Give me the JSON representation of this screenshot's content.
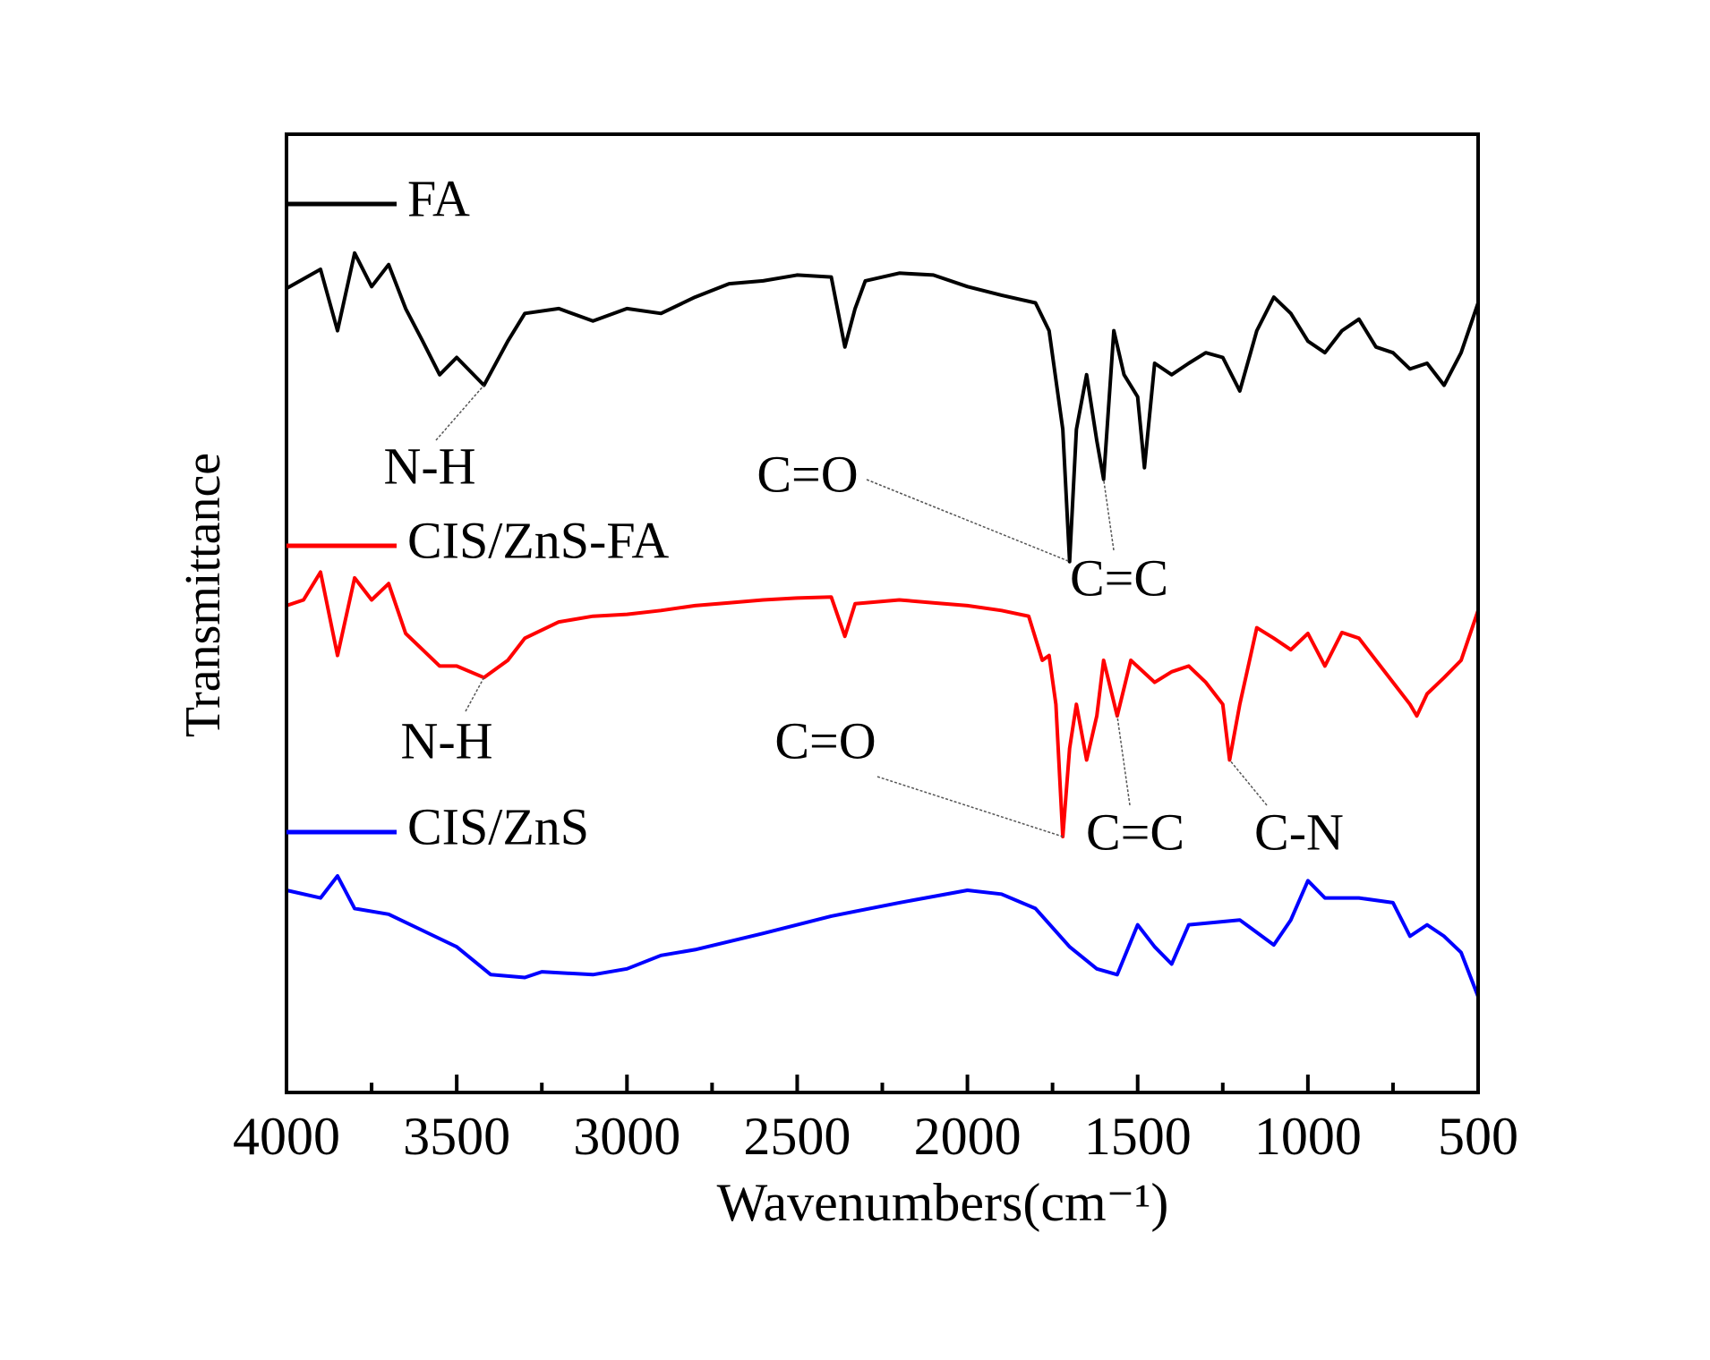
{
  "chart_data": {
    "type": "line",
    "xlabel": "Wavenumbers(cm⁻¹)",
    "ylabel": "Transmittance",
    "xlim": [
      4000,
      500
    ],
    "ylim": [
      0,
      100
    ],
    "xticks": [
      4000,
      3500,
      3000,
      2500,
      2000,
      1500,
      1000,
      500
    ],
    "xminorticks": [
      3750,
      3250,
      2750,
      2250,
      1750,
      1250,
      750
    ],
    "series": [
      {
        "name": "FA",
        "color": "#000000",
        "x": [
          4000,
          3900,
          3850,
          3800,
          3750,
          3700,
          3650,
          3600,
          3550,
          3500,
          3420,
          3350,
          3300,
          3200,
          3100,
          3000,
          2900,
          2800,
          2700,
          2600,
          2500,
          2400,
          2360,
          2330,
          2300,
          2200,
          2100,
          2000,
          1900,
          1800,
          1760,
          1720,
          1700,
          1680,
          1650,
          1620,
          1600,
          1570,
          1540,
          1500,
          1480,
          1450,
          1400,
          1350,
          1300,
          1250,
          1200,
          1150,
          1100,
          1050,
          1000,
          950,
          900,
          850,
          800,
          750,
          700,
          650,
          600,
          550,
          500
        ],
        "values": [
          83.9,
          85.9,
          79.5,
          87.6,
          84.1,
          86.4,
          81.8,
          78.4,
          74.9,
          76.7,
          73.8,
          78.4,
          81.3,
          81.8,
          80.5,
          81.8,
          81.3,
          83.0,
          84.4,
          84.7,
          85.3,
          85.1,
          77.8,
          81.8,
          84.7,
          85.5,
          85.3,
          84.1,
          83.2,
          82.4,
          79.5,
          69.2,
          55.4,
          69.2,
          74.9,
          68.0,
          64.0,
          79.5,
          74.9,
          72.6,
          65.2,
          76.1,
          74.9,
          76.1,
          77.2,
          76.7,
          73.2,
          79.5,
          83.0,
          81.3,
          78.4,
          77.2,
          79.5,
          80.7,
          77.8,
          77.2,
          75.5,
          76.1,
          73.8,
          77.2,
          82.4
        ]
      },
      {
        "name": "CIS/ZnS-FA",
        "color": "#ff0000",
        "x": [
          4000,
          3950,
          3900,
          3850,
          3800,
          3750,
          3700,
          3650,
          3600,
          3550,
          3500,
          3420,
          3350,
          3300,
          3200,
          3100,
          3000,
          2900,
          2800,
          2700,
          2600,
          2500,
          2400,
          2360,
          2330,
          2200,
          2100,
          2000,
          1900,
          1820,
          1780,
          1760,
          1740,
          1720,
          1700,
          1680,
          1650,
          1620,
          1600,
          1560,
          1520,
          1450,
          1400,
          1350,
          1300,
          1250,
          1230,
          1200,
          1150,
          1100,
          1050,
          1000,
          950,
          900,
          850,
          800,
          750,
          700,
          680,
          650,
          600,
          550,
          500
        ],
        "values": [
          50.8,
          51.4,
          54.3,
          45.6,
          53.7,
          51.4,
          53.1,
          47.9,
          46.2,
          44.5,
          44.5,
          43.3,
          45.1,
          47.4,
          49.1,
          49.7,
          49.9,
          50.3,
          50.8,
          51.1,
          51.4,
          51.6,
          51.7,
          47.6,
          51.0,
          51.4,
          51.1,
          50.8,
          50.3,
          49.7,
          45.1,
          45.6,
          40.5,
          26.7,
          35.9,
          40.5,
          34.7,
          39.3,
          45.1,
          39.3,
          45.1,
          42.8,
          43.9,
          44.5,
          42.8,
          40.5,
          34.7,
          40.5,
          48.5,
          47.4,
          46.2,
          47.9,
          44.5,
          48.0,
          47.4,
          45.1,
          42.8,
          40.5,
          39.3,
          41.6,
          43.3,
          45.1,
          50.3
        ]
      },
      {
        "name": "CIS/ZnS",
        "color": "#0000ff",
        "x": [
          4000,
          3900,
          3850,
          3800,
          3700,
          3600,
          3500,
          3400,
          3300,
          3250,
          3100,
          3000,
          2900,
          2800,
          2600,
          2400,
          2200,
          2000,
          1900,
          1800,
          1700,
          1620,
          1560,
          1500,
          1450,
          1400,
          1350,
          1200,
          1100,
          1050,
          1000,
          950,
          850,
          750,
          700,
          650,
          600,
          550,
          500
        ],
        "values": [
          21.1,
          20.3,
          22.6,
          19.2,
          18.6,
          16.9,
          15.2,
          12.3,
          12.0,
          12.6,
          12.3,
          12.9,
          14.3,
          14.9,
          16.6,
          18.4,
          19.8,
          21.1,
          20.7,
          19.2,
          15.2,
          12.9,
          12.3,
          17.5,
          15.2,
          13.4,
          17.5,
          18.0,
          15.4,
          18.0,
          22.1,
          20.3,
          20.3,
          19.8,
          16.3,
          17.5,
          16.3,
          14.6,
          10.0
        ]
      }
    ],
    "annotations": [
      {
        "text": "N-H",
        "series": 0,
        "x": 3420,
        "y": 73.8
      },
      {
        "text": "C=O",
        "series": 0,
        "x": 1700,
        "y": 55.4
      },
      {
        "text": "C=C",
        "series": 0,
        "x": 1600,
        "y": 64.0
      },
      {
        "text": "N-H",
        "series": 1,
        "x": 3420,
        "y": 43.3
      },
      {
        "text": "C=O",
        "series": 1,
        "x": 1720,
        "y": 26.7
      },
      {
        "text": "C=C",
        "series": 1,
        "x": 1560,
        "y": 39.3
      },
      {
        "text": "C-N",
        "series": 1,
        "x": 1230,
        "y": 34.7
      }
    ]
  }
}
